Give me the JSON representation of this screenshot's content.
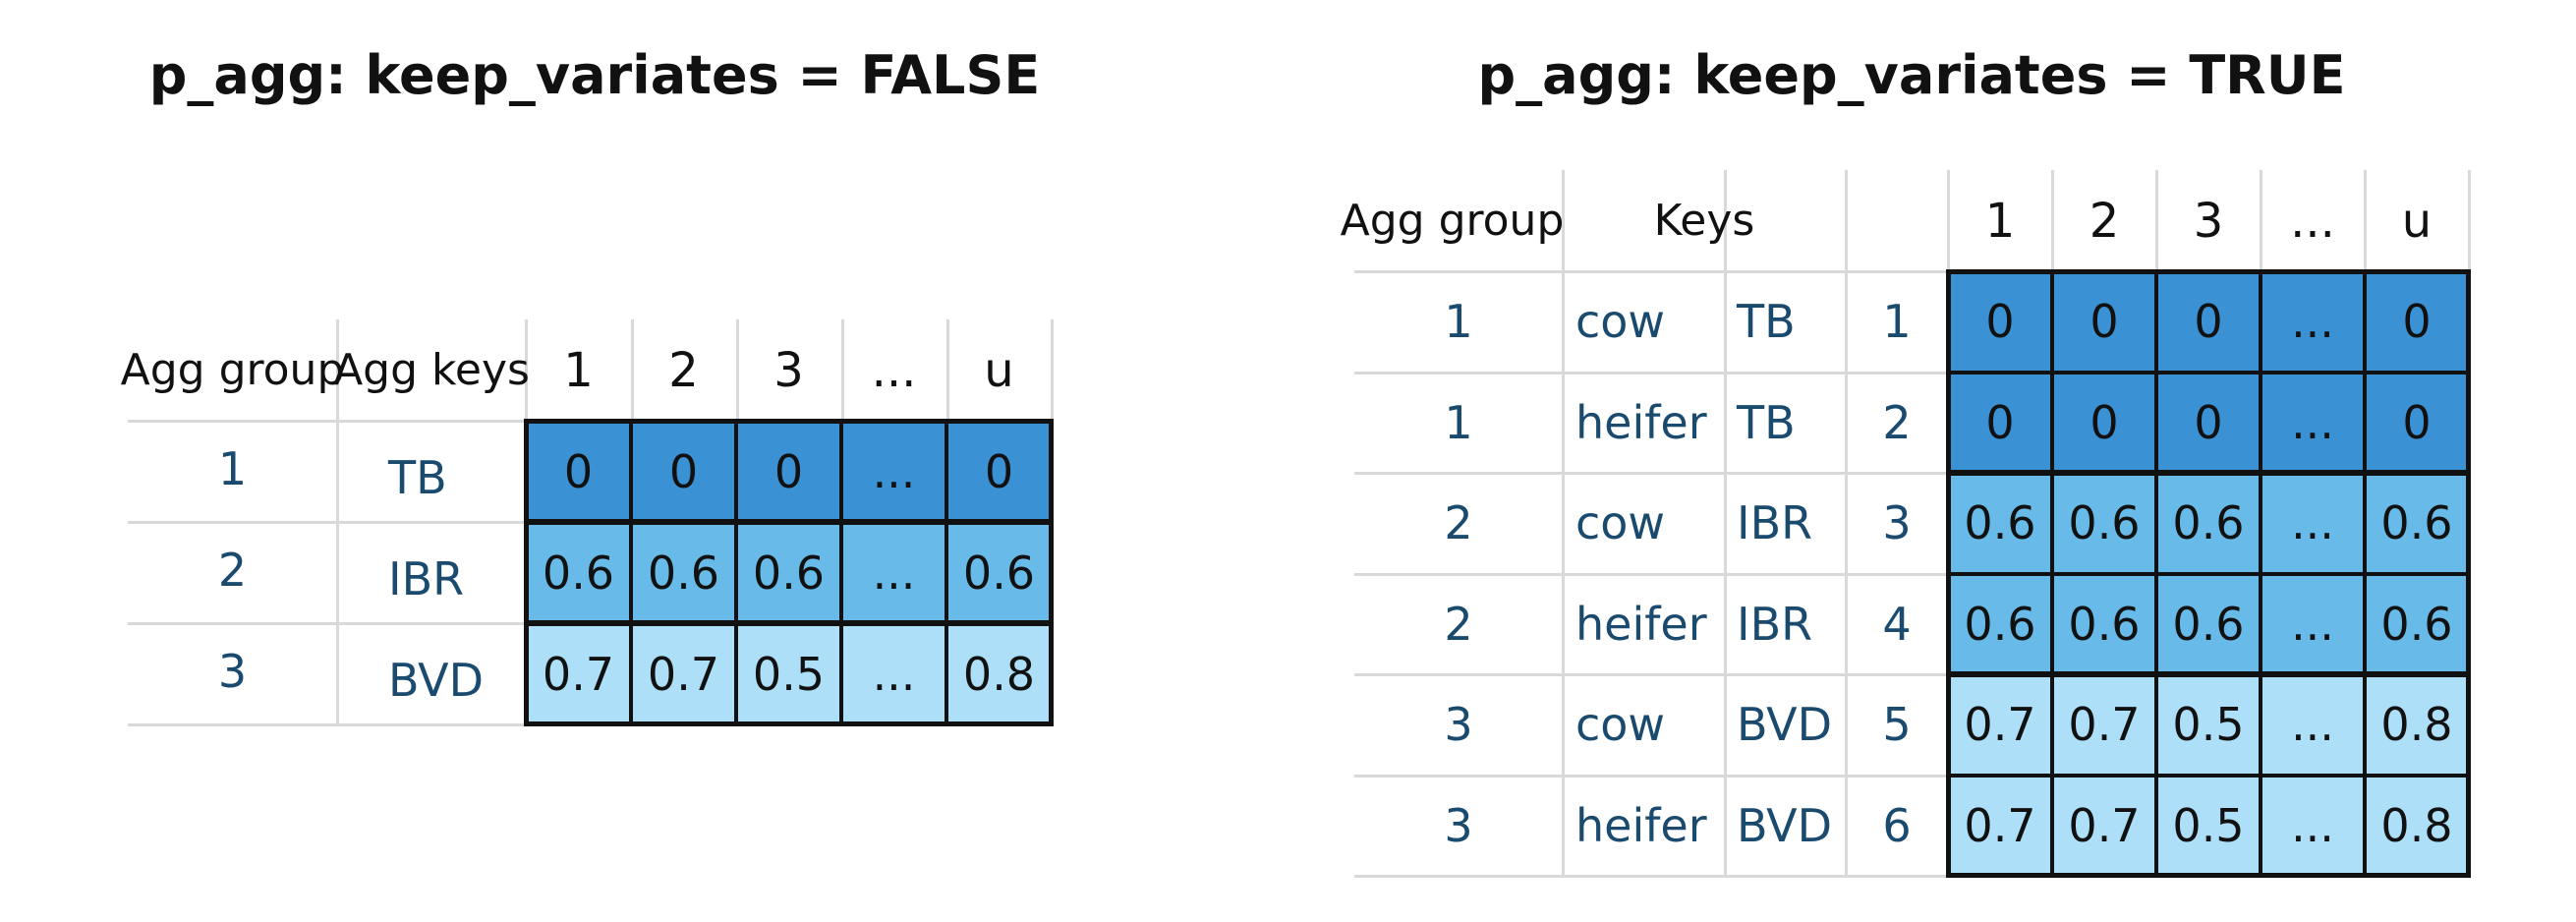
{
  "colors": {
    "dark": "#3a91d4",
    "mid": "#68bbe8",
    "light": "#aedff8",
    "text": "#1a4a6e"
  },
  "left": {
    "title": "p_agg: keep_variates = FALSE",
    "headers": {
      "group": "Agg group",
      "keys": "Agg keys",
      "cols": [
        "1",
        "2",
        "3",
        "...",
        "u"
      ]
    },
    "rows": [
      {
        "group": "1",
        "key": "TB",
        "values": [
          "0",
          "0",
          "0",
          "...",
          "0"
        ],
        "shade": "dark"
      },
      {
        "group": "2",
        "key": "IBR",
        "values": [
          "0.6",
          "0.6",
          "0.6",
          "...",
          "0.6"
        ],
        "shade": "mid"
      },
      {
        "group": "3",
        "key": "BVD",
        "values": [
          "0.7",
          "0.7",
          "0.5",
          "...",
          "0.8"
        ],
        "shade": "light"
      }
    ]
  },
  "right": {
    "title": "p_agg: keep_variates = TRUE",
    "headers": {
      "group": "Agg group",
      "keys": "Keys",
      "cols": [
        "1",
        "2",
        "3",
        "...",
        "u"
      ]
    },
    "rows": [
      {
        "group": "1",
        "animal": "cow",
        "disease": "TB",
        "index": "1",
        "values": [
          "0",
          "0",
          "0",
          "...",
          "0"
        ],
        "shade": "dark"
      },
      {
        "group": "1",
        "animal": "heifer",
        "disease": "TB",
        "index": "2",
        "values": [
          "0",
          "0",
          "0",
          "...",
          "0"
        ],
        "shade": "dark"
      },
      {
        "group": "2",
        "animal": "cow",
        "disease": "IBR",
        "index": "3",
        "values": [
          "0.6",
          "0.6",
          "0.6",
          "...",
          "0.6"
        ],
        "shade": "mid"
      },
      {
        "group": "2",
        "animal": "heifer",
        "disease": "IBR",
        "index": "4",
        "values": [
          "0.6",
          "0.6",
          "0.6",
          "...",
          "0.6"
        ],
        "shade": "mid"
      },
      {
        "group": "3",
        "animal": "cow",
        "disease": "BVD",
        "index": "5",
        "values": [
          "0.7",
          "0.7",
          "0.5",
          "...",
          "0.8"
        ],
        "shade": "light"
      },
      {
        "group": "3",
        "animal": "heifer",
        "disease": "BVD",
        "index": "6",
        "values": [
          "0.7",
          "0.7",
          "0.5",
          "...",
          "0.8"
        ],
        "shade": "light"
      }
    ]
  }
}
